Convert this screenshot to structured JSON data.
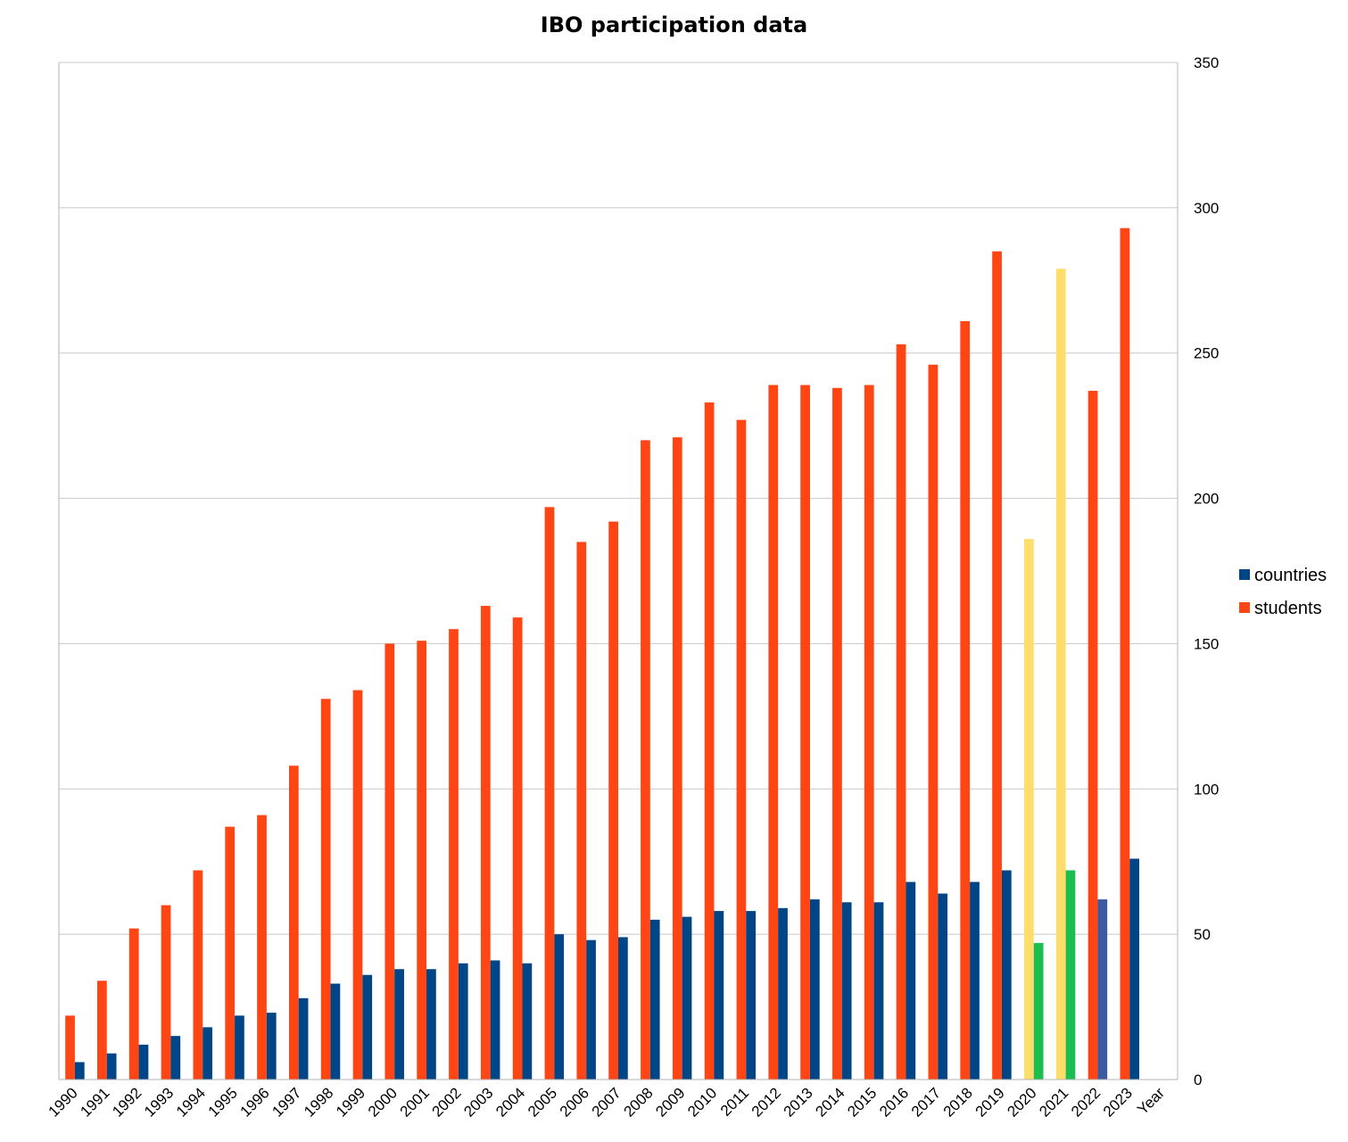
{
  "chart_data": {
    "type": "bar",
    "title": "IBO participation data",
    "xlabel": "Year",
    "ylabel": "",
    "ylim": [
      0,
      350
    ],
    "yticks": [
      0,
      50,
      100,
      150,
      200,
      250,
      300,
      350
    ],
    "grid": true,
    "legend_position": "right",
    "categories": [
      "1990",
      "1991",
      "1992",
      "1993",
      "1994",
      "1995",
      "1996",
      "1997",
      "1998",
      "1999",
      "2000",
      "2001",
      "2002",
      "2003",
      "2004",
      "2005",
      "2006",
      "2007",
      "2008",
      "2009",
      "2010",
      "2011",
      "2012",
      "2013",
      "2014",
      "2015",
      "2016",
      "2017",
      "2018",
      "2019",
      "2020",
      "2021",
      "2022",
      "2023"
    ],
    "series": [
      {
        "name": "students",
        "color": "#ff4513",
        "values": [
          22,
          34,
          52,
          60,
          72,
          87,
          91,
          108,
          131,
          134,
          150,
          151,
          155,
          163,
          159,
          197,
          185,
          192,
          220,
          221,
          233,
          227,
          239,
          239,
          238,
          239,
          253,
          246,
          261,
          285,
          186,
          279,
          237,
          293
        ]
      },
      {
        "name": "countries",
        "color": "#004586",
        "values": [
          6,
          9,
          12,
          15,
          18,
          22,
          23,
          28,
          33,
          36,
          38,
          38,
          40,
          41,
          40,
          50,
          48,
          49,
          55,
          56,
          58,
          58,
          59,
          62,
          61,
          61,
          68,
          64,
          68,
          72,
          47,
          72,
          62,
          76
        ]
      }
    ],
    "bar_color_overrides": [
      {
        "category": "2020",
        "series": "students",
        "color": "#ffdd6b"
      },
      {
        "category": "2020",
        "series": "countries",
        "color": "#1cbe4f"
      },
      {
        "category": "2021",
        "series": "students",
        "color": "#ffdd6b"
      },
      {
        "category": "2021",
        "series": "countries",
        "color": "#1cbe4f"
      },
      {
        "category": "2022",
        "series": "countries",
        "color": "#3b5aa0"
      }
    ],
    "legend": [
      {
        "label": "countries",
        "color": "#004586"
      },
      {
        "label": "students",
        "color": "#ff4513"
      }
    ]
  }
}
